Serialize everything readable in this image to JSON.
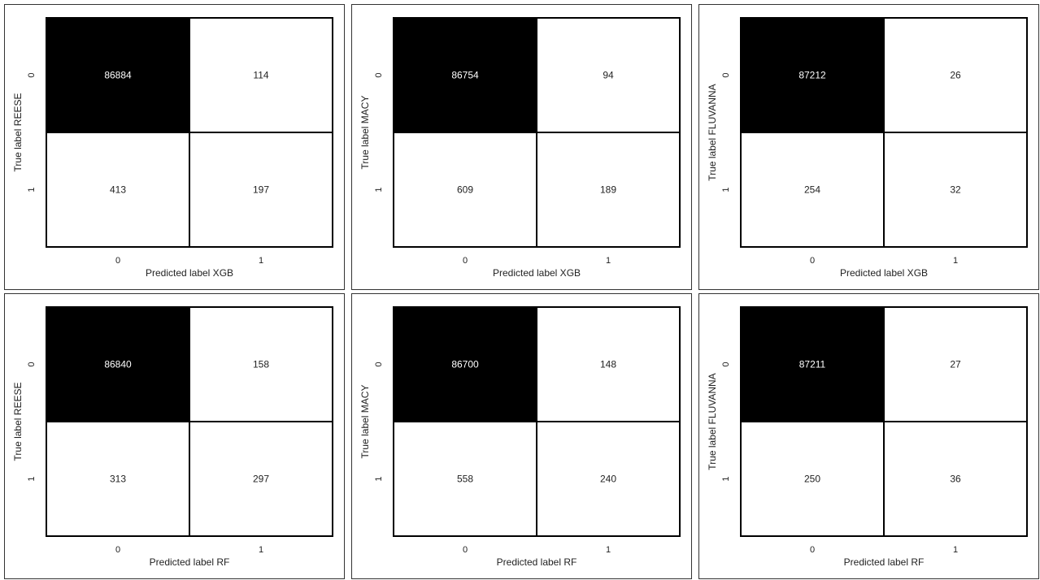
{
  "chart_data": [
    {
      "type": "heatmap",
      "ylabel": "True label REESE",
      "xlabel": "Predicted label XGB",
      "x_tick_labels": [
        "0",
        "1"
      ],
      "y_tick_labels": [
        "0",
        "1"
      ],
      "values": [
        [
          86884,
          114
        ],
        [
          413,
          197
        ]
      ]
    },
    {
      "type": "heatmap",
      "ylabel": "True label MACY",
      "xlabel": "Predicted label XGB",
      "x_tick_labels": [
        "0",
        "1"
      ],
      "y_tick_labels": [
        "0",
        "1"
      ],
      "values": [
        [
          86754,
          94
        ],
        [
          609,
          189
        ]
      ]
    },
    {
      "type": "heatmap",
      "ylabel": "True label FLUVANNA",
      "xlabel": "Predicted label XGB",
      "x_tick_labels": [
        "0",
        "1"
      ],
      "y_tick_labels": [
        "0",
        "1"
      ],
      "values": [
        [
          87212,
          26
        ],
        [
          254,
          32
        ]
      ]
    },
    {
      "type": "heatmap",
      "ylabel": "True label REESE",
      "xlabel": "Predicted label RF",
      "x_tick_labels": [
        "0",
        "1"
      ],
      "y_tick_labels": [
        "0",
        "1"
      ],
      "values": [
        [
          86840,
          158
        ],
        [
          313,
          297
        ]
      ]
    },
    {
      "type": "heatmap",
      "ylabel": "True label MACY",
      "xlabel": "Predicted label RF",
      "x_tick_labels": [
        "0",
        "1"
      ],
      "y_tick_labels": [
        "0",
        "1"
      ],
      "values": [
        [
          86700,
          148
        ],
        [
          558,
          240
        ]
      ]
    },
    {
      "type": "heatmap",
      "ylabel": "True label FLUVANNA",
      "xlabel": "Predicted label RF",
      "x_tick_labels": [
        "0",
        "1"
      ],
      "y_tick_labels": [
        "0",
        "1"
      ],
      "values": [
        [
          87211,
          27
        ],
        [
          250,
          36
        ]
      ]
    }
  ],
  "colors": {
    "high": "#000000",
    "low": "#ffffff",
    "high_text": "#ffffff",
    "low_text": "#222222",
    "border": "#000000"
  }
}
